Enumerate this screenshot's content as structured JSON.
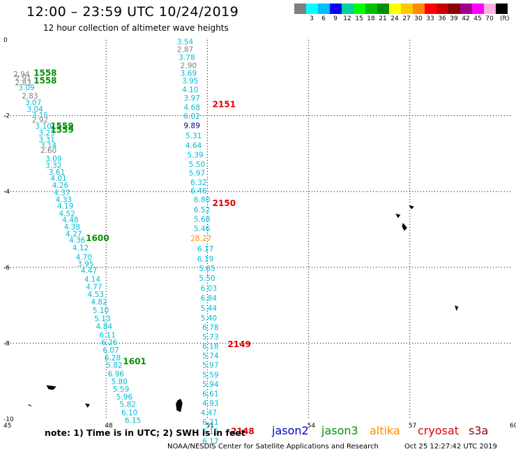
{
  "header": {
    "title": "12:00 – 23:59 UTC 10/24/2019",
    "subtitle": "12 hour collection of altimeter wave heights"
  },
  "legend": {
    "unit": "(ft)",
    "colors": [
      {
        "value": "",
        "color": "#808080"
      },
      {
        "value": "3",
        "color": "#00ffff"
      },
      {
        "value": "6",
        "color": "#00bfff"
      },
      {
        "value": "9",
        "color": "#0000ff"
      },
      {
        "value": "12",
        "color": "#00d0a0"
      },
      {
        "value": "15",
        "color": "#00ff00"
      },
      {
        "value": "18",
        "color": "#00c000"
      },
      {
        "value": "21",
        "color": "#009000"
      },
      {
        "value": "24",
        "color": "#ffff00"
      },
      {
        "value": "27",
        "color": "#ffc800"
      },
      {
        "value": "30",
        "color": "#ff8c00"
      },
      {
        "value": "33",
        "color": "#ff0000"
      },
      {
        "value": "36",
        "color": "#c80000"
      },
      {
        "value": "39",
        "color": "#8b0000"
      },
      {
        "value": "42",
        "color": "#a0008c"
      },
      {
        "value": "45",
        "color": "#ff00ff"
      },
      {
        "value": "70",
        "color": "#ffb0e0"
      },
      {
        "value": "",
        "color": "#000000"
      }
    ]
  },
  "axes": {
    "x_ticks": [
      "45",
      "48",
      "51",
      "54",
      "57",
      "60"
    ],
    "y_ticks": [
      "0",
      "-2",
      "-4",
      "-6",
      "-8",
      "-10"
    ],
    "x_range": [
      45,
      60
    ],
    "y_range": [
      -10,
      0
    ]
  },
  "tracks": [
    {
      "satellite": "jason3",
      "passes": [
        {
          "time": "1558",
          "lon": 45.85,
          "lat": -0.95
        },
        {
          "time": "1558",
          "lon": 45.85,
          "lat": -1.15
        },
        {
          "time": "1559",
          "lon": 46.35,
          "lat": -2.35
        },
        {
          "time": "1559",
          "lon": 46.35,
          "lat": -2.45
        },
        {
          "time": "1600",
          "lon": 47.4,
          "lat": -5.3
        },
        {
          "time": "1601",
          "lon": 48.5,
          "lat": -8.55
        }
      ],
      "points": [
        {
          "v": "2.94",
          "lon": 45.25,
          "lat": -0.98,
          "c": "#808080"
        },
        {
          "v": "2.91",
          "lon": 45.3,
          "lat": -1.08,
          "c": "#808080"
        },
        {
          "v": "2.83",
          "lon": 45.3,
          "lat": -1.2,
          "c": "#808080"
        },
        {
          "v": "3.09",
          "lon": 45.4,
          "lat": -1.33,
          "c": "#00bcd4"
        },
        {
          "v": "2.83",
          "lon": 45.5,
          "lat": -1.55,
          "c": "#808080"
        },
        {
          "v": "3.07",
          "lon": 45.6,
          "lat": -1.72,
          "c": "#00bcd4"
        },
        {
          "v": "3.04",
          "lon": 45.65,
          "lat": -1.9,
          "c": "#00bcd4"
        },
        {
          "v": "3.15",
          "lon": 45.8,
          "lat": -2.05,
          "c": "#00bcd4"
        },
        {
          "v": "2.92",
          "lon": 45.8,
          "lat": -2.18,
          "c": "#808080"
        },
        {
          "v": "3.10",
          "lon": 45.9,
          "lat": -2.35,
          "c": "#00bcd4"
        },
        {
          "v": "3.23",
          "lon": 46.0,
          "lat": -2.52,
          "c": "#00bcd4"
        },
        {
          "v": "3.31",
          "lon": 46.0,
          "lat": -2.7,
          "c": "#00bcd4"
        },
        {
          "v": "3.14",
          "lon": 46.05,
          "lat": -2.85,
          "c": "#00bcd4"
        },
        {
          "v": "2.60",
          "lon": 46.05,
          "lat": -2.98,
          "c": "#808080"
        },
        {
          "v": "3.09",
          "lon": 46.2,
          "lat": -3.2,
          "c": "#00bcd4"
        },
        {
          "v": "3.32",
          "lon": 46.2,
          "lat": -3.38,
          "c": "#00bcd4"
        },
        {
          "v": "3.61",
          "lon": 46.3,
          "lat": -3.55,
          "c": "#00bcd4"
        },
        {
          "v": "4.01",
          "lon": 46.35,
          "lat": -3.72,
          "c": "#00bcd4"
        },
        {
          "v": "4.26",
          "lon": 46.4,
          "lat": -3.9,
          "c": "#00bcd4"
        },
        {
          "v": "4.37",
          "lon": 46.45,
          "lat": -4.1,
          "c": "#00bcd4"
        },
        {
          "v": "4.33",
          "lon": 46.5,
          "lat": -4.28,
          "c": "#00bcd4"
        },
        {
          "v": "4.19",
          "lon": 46.55,
          "lat": -4.45,
          "c": "#00bcd4"
        },
        {
          "v": "4.52",
          "lon": 46.6,
          "lat": -4.65,
          "c": "#00bcd4"
        },
        {
          "v": "4.48",
          "lon": 46.7,
          "lat": -4.82,
          "c": "#00bcd4"
        },
        {
          "v": "4.38",
          "lon": 46.75,
          "lat": -5.0,
          "c": "#00bcd4"
        },
        {
          "v": "4.27",
          "lon": 46.8,
          "lat": -5.18,
          "c": "#00bcd4"
        },
        {
          "v": "4.36",
          "lon": 46.9,
          "lat": -5.35,
          "c": "#00bcd4"
        },
        {
          "v": "4.12",
          "lon": 47.0,
          "lat": -5.55,
          "c": "#00bcd4"
        },
        {
          "v": "4.70",
          "lon": 47.1,
          "lat": -5.8,
          "c": "#00bcd4"
        },
        {
          "v": "3.95",
          "lon": 47.15,
          "lat": -5.98,
          "c": "#00bcd4"
        },
        {
          "v": "4.47",
          "lon": 47.25,
          "lat": -6.15,
          "c": "#00bcd4"
        },
        {
          "v": "4.14",
          "lon": 47.35,
          "lat": -6.38,
          "c": "#00bcd4"
        },
        {
          "v": "4.77",
          "lon": 47.4,
          "lat": -6.58,
          "c": "#00bcd4"
        },
        {
          "v": "4.53",
          "lon": 47.45,
          "lat": -6.78,
          "c": "#00bcd4"
        },
        {
          "v": "4.82",
          "lon": 47.55,
          "lat": -6.98,
          "c": "#00bcd4"
        },
        {
          "v": "5.10",
          "lon": 47.6,
          "lat": -7.2,
          "c": "#00bcd4"
        },
        {
          "v": "5.13",
          "lon": 47.65,
          "lat": -7.42,
          "c": "#00bcd4"
        },
        {
          "v": "4.84",
          "lon": 47.7,
          "lat": -7.62,
          "c": "#00bcd4"
        },
        {
          "v": "6.11",
          "lon": 47.8,
          "lat": -7.85,
          "c": "#00bcd4"
        },
        {
          "v": "6.26",
          "lon": 47.85,
          "lat": -8.05,
          "c": "#00bcd4"
        },
        {
          "v": "6.07",
          "lon": 47.9,
          "lat": -8.25,
          "c": "#00bcd4"
        },
        {
          "v": "6.28",
          "lon": 47.95,
          "lat": -8.45,
          "c": "#00bcd4"
        },
        {
          "v": "5.82",
          "lon": 48.0,
          "lat": -8.65,
          "c": "#00bcd4"
        },
        {
          "v": "6.96",
          "lon": 48.05,
          "lat": -8.88,
          "c": "#00bcd4"
        },
        {
          "v": "5.80",
          "lon": 48.15,
          "lat": -9.08,
          "c": "#00bcd4"
        },
        {
          "v": "5.59",
          "lon": 48.2,
          "lat": -9.28,
          "c": "#00bcd4"
        },
        {
          "v": "5.96",
          "lon": 48.3,
          "lat": -9.48,
          "c": "#00bcd4"
        },
        {
          "v": "5.82",
          "lon": 48.4,
          "lat": -9.68,
          "c": "#00bcd4"
        },
        {
          "v": "6.10",
          "lon": 48.45,
          "lat": -9.9,
          "c": "#00bcd4"
        },
        {
          "v": "6.15",
          "lon": 48.55,
          "lat": -10.1,
          "c": "#00bcd4"
        }
      ]
    },
    {
      "satellite": "cryosat",
      "passes": [
        {
          "time": "2151",
          "lon": 51.15,
          "lat": -1.78
        },
        {
          "time": "2150",
          "lon": 51.15,
          "lat": -4.38
        },
        {
          "time": "2149",
          "lon": 51.6,
          "lat": -8.1
        },
        {
          "time": "2148",
          "lon": 51.7,
          "lat": -10.4
        }
      ],
      "points": [
        {
          "v": "3.54",
          "lon": 50.1,
          "lat": -0.12,
          "c": "#00bcd4"
        },
        {
          "v": "2.87",
          "lon": 50.1,
          "lat": -0.32,
          "c": "#808080"
        },
        {
          "v": "3.78",
          "lon": 50.15,
          "lat": -0.53,
          "c": "#00bcd4"
        },
        {
          "v": "2.90",
          "lon": 50.2,
          "lat": -0.75,
          "c": "#808080"
        },
        {
          "v": "3.69",
          "lon": 50.2,
          "lat": -0.95,
          "c": "#00bcd4"
        },
        {
          "v": "3.95",
          "lon": 50.25,
          "lat": -1.15,
          "c": "#00bcd4"
        },
        {
          "v": "4.10",
          "lon": 50.25,
          "lat": -1.38,
          "c": "#00bcd4"
        },
        {
          "v": "3.97",
          "lon": 50.3,
          "lat": -1.6,
          "c": "#00bcd4"
        },
        {
          "v": "4.68",
          "lon": 50.3,
          "lat": -1.85,
          "c": "#00bcd4"
        },
        {
          "v": "6.02",
          "lon": 50.3,
          "lat": -2.08,
          "c": "#00bcd4"
        },
        {
          "v": "9.89",
          "lon": 50.3,
          "lat": -2.33,
          "c": "#00008b"
        },
        {
          "v": "5.31",
          "lon": 50.35,
          "lat": -2.6,
          "c": "#00bcd4"
        },
        {
          "v": "4.64",
          "lon": 50.35,
          "lat": -2.85,
          "c": "#00bcd4"
        },
        {
          "v": "5.39",
          "lon": 50.4,
          "lat": -3.1,
          "c": "#00bcd4"
        },
        {
          "v": "5.50",
          "lon": 50.45,
          "lat": -3.35,
          "c": "#00bcd4"
        },
        {
          "v": "5.97",
          "lon": 50.45,
          "lat": -3.58,
          "c": "#00bcd4"
        },
        {
          "v": "6.32",
          "lon": 50.5,
          "lat": -3.83,
          "c": "#00bcd4"
        },
        {
          "v": "6.46",
          "lon": 50.5,
          "lat": -4.05,
          "c": "#00bcd4"
        },
        {
          "v": "6.80",
          "lon": 50.6,
          "lat": -4.28,
          "c": "#00bcd4"
        },
        {
          "v": "6.52",
          "lon": 50.6,
          "lat": -4.55,
          "c": "#00bcd4"
        },
        {
          "v": "5.68",
          "lon": 50.6,
          "lat": -4.8,
          "c": "#00bcd4"
        },
        {
          "v": "5.46",
          "lon": 50.6,
          "lat": -5.05,
          "c": "#00bcd4"
        },
        {
          "v": "28.27",
          "lon": 50.5,
          "lat": -5.3,
          "c": "#ff8c00"
        },
        {
          "v": "6.17",
          "lon": 50.7,
          "lat": -5.58,
          "c": "#00bcd4"
        },
        {
          "v": "6.19",
          "lon": 50.7,
          "lat": -5.85,
          "c": "#00bcd4"
        },
        {
          "v": "5.65",
          "lon": 50.75,
          "lat": -6.1,
          "c": "#00bcd4"
        },
        {
          "v": "5.50",
          "lon": 50.75,
          "lat": -6.35,
          "c": "#00bcd4"
        },
        {
          "v": "6.03",
          "lon": 50.8,
          "lat": -6.62,
          "c": "#00bcd4"
        },
        {
          "v": "6.84",
          "lon": 50.8,
          "lat": -6.88,
          "c": "#00bcd4"
        },
        {
          "v": "5.44",
          "lon": 50.8,
          "lat": -7.15,
          "c": "#00bcd4"
        },
        {
          "v": "5.40",
          "lon": 50.8,
          "lat": -7.4,
          "c": "#00bcd4"
        },
        {
          "v": "6.78",
          "lon": 50.85,
          "lat": -7.65,
          "c": "#00bcd4"
        },
        {
          "v": "5.73",
          "lon": 50.85,
          "lat": -7.9,
          "c": "#00bcd4"
        },
        {
          "v": "6.18",
          "lon": 50.85,
          "lat": -8.15,
          "c": "#00bcd4"
        },
        {
          "v": "5.74",
          "lon": 50.85,
          "lat": -8.4,
          "c": "#00bcd4"
        },
        {
          "v": "5.97",
          "lon": 50.85,
          "lat": -8.65,
          "c": "#00bcd4"
        },
        {
          "v": "5.59",
          "lon": 50.85,
          "lat": -8.9,
          "c": "#00bcd4"
        },
        {
          "v": "5.94",
          "lon": 50.85,
          "lat": -9.15,
          "c": "#00bcd4"
        },
        {
          "v": "6.61",
          "lon": 50.85,
          "lat": -9.4,
          "c": "#00bcd4"
        },
        {
          "v": "4.93",
          "lon": 50.85,
          "lat": -9.65,
          "c": "#00bcd4"
        },
        {
          "v": "4.47",
          "lon": 50.8,
          "lat": -9.9,
          "c": "#00bcd4"
        },
        {
          "v": "6.21",
          "lon": 50.85,
          "lat": -10.15,
          "c": "#00bcd4"
        },
        {
          "v": "6.15",
          "lon": 50.85,
          "lat": -10.4,
          "c": "#00bcd4"
        },
        {
          "v": "6.17",
          "lon": 50.85,
          "lat": -10.65,
          "c": "#00bcd4"
        }
      ]
    }
  ],
  "footer": {
    "note": "note: 1) Time is in UTC; 2) SWH is in feet",
    "satellites": [
      {
        "name": "jason2",
        "color": "#0000cc"
      },
      {
        "name": "jason3",
        "color": "#009000"
      },
      {
        "name": "altika",
        "color": "#ff8c00"
      },
      {
        "name": "cryosat",
        "color": "#e00000"
      },
      {
        "name": "s3a",
        "color": "#8b0000"
      }
    ],
    "credit": "NOAA/NESDIS Center for Satellite Applications and Research",
    "timestamp": "Oct 25 12:27:42 UTC 2019"
  }
}
